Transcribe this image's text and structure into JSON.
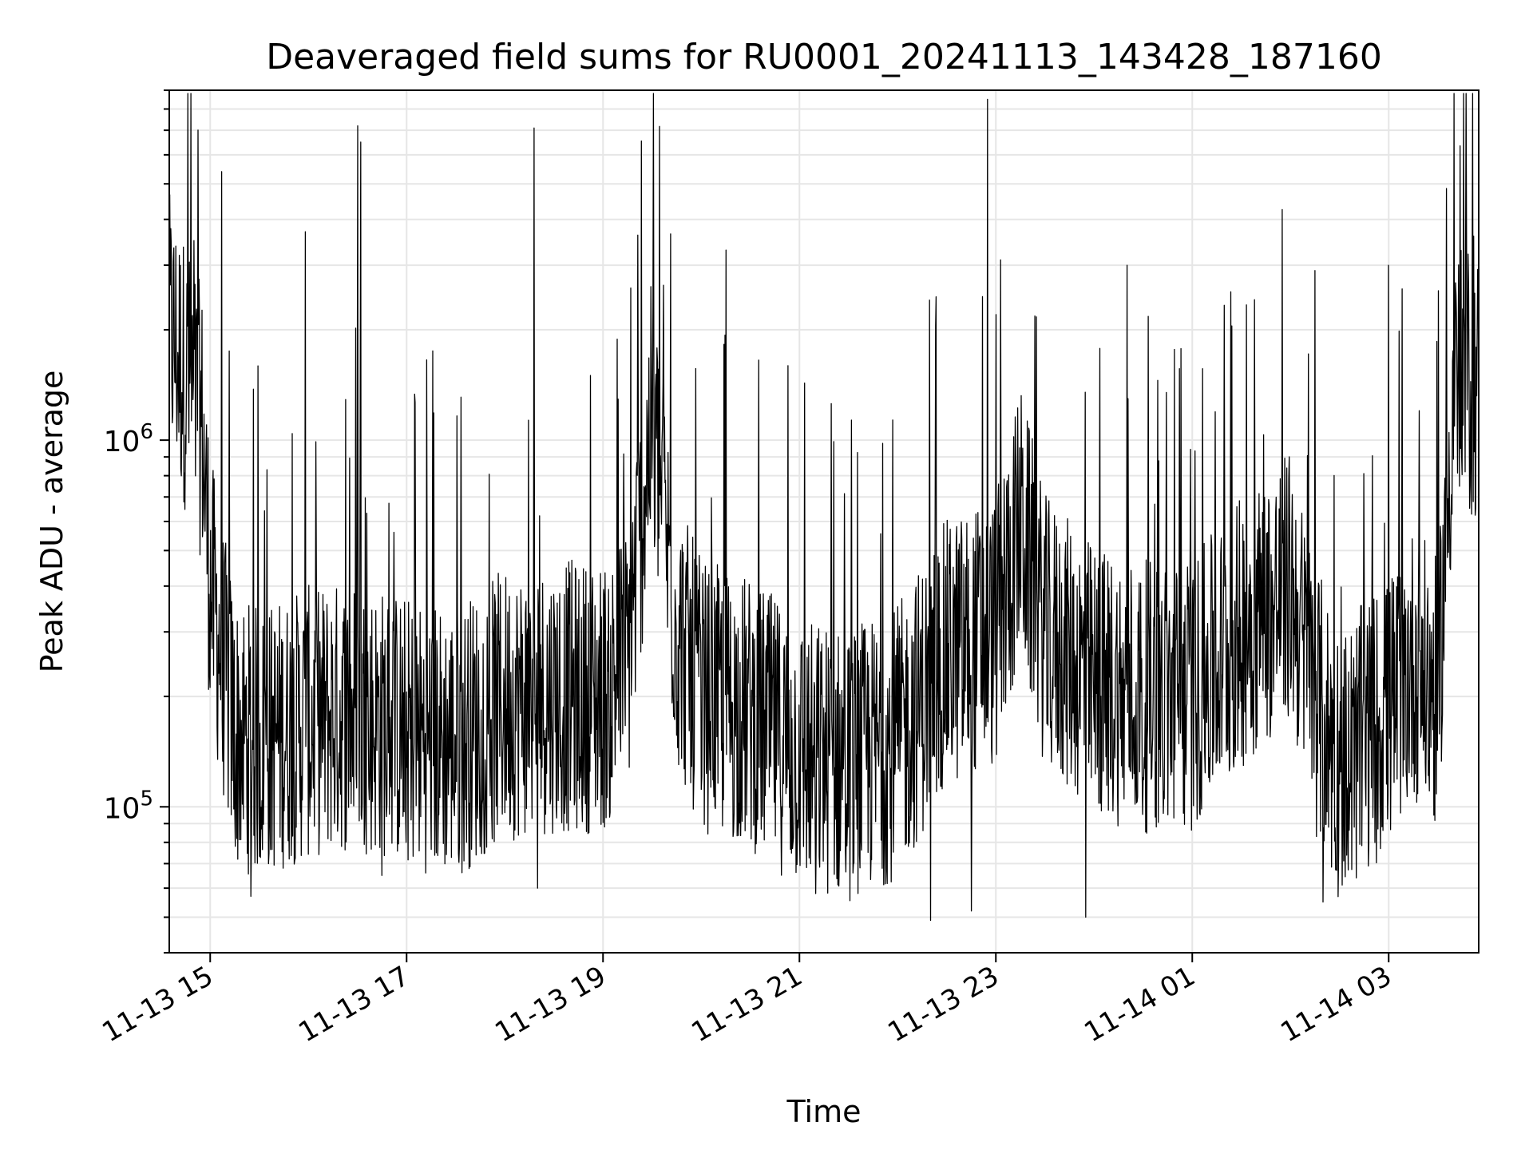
{
  "chart_data": {
    "type": "line",
    "title": "Deaveraged field sums for RU0001_20241113_143428_187160",
    "xlabel": "Time",
    "ylabel": "Peak ADU - average",
    "yscale": "log",
    "ylim": [
      40000,
      9000000
    ],
    "xlim": [
      "2024-11-13 14:35",
      "2024-11-14 03:55"
    ],
    "grid": true,
    "colors": {
      "line": "#000000",
      "grid": "#e6e6e6",
      "axes": "#000000"
    },
    "x_ticks": [
      {
        "label": "11-13 15",
        "t": "2024-11-13 15:00"
      },
      {
        "label": "11-13 17",
        "t": "2024-11-13 17:00"
      },
      {
        "label": "11-13 19",
        "t": "2024-11-13 19:00"
      },
      {
        "label": "11-13 21",
        "t": "2024-11-13 21:00"
      },
      {
        "label": "11-13 23",
        "t": "2024-11-13 23:00"
      },
      {
        "label": "11-14 01",
        "t": "2024-11-14 01:00"
      },
      {
        "label": "11-14 03",
        "t": "2024-11-14 03:00"
      }
    ],
    "y_ticks": [
      {
        "base": "10",
        "exp": "5",
        "value": 100000
      },
      {
        "base": "10",
        "exp": "6",
        "value": 1000000
      }
    ],
    "series": [
      {
        "x": [
          "2024-11-13 14:35",
          "2024-11-13 14:45",
          "2024-11-13 14:55",
          "2024-11-13 15:00",
          "2024-11-13 15:15",
          "2024-11-13 15:30",
          "2024-11-13 16:00",
          "2024-11-13 16:30",
          "2024-11-13 17:00",
          "2024-11-13 17:30",
          "2024-11-13 18:00",
          "2024-11-13 18:30",
          "2024-11-13 19:00",
          "2024-11-13 19:15",
          "2024-11-13 19:30",
          "2024-11-13 19:45",
          "2024-11-13 20:00",
          "2024-11-13 20:30",
          "2024-11-13 21:00",
          "2024-11-13 21:30",
          "2024-11-13 22:00",
          "2024-11-13 22:30",
          "2024-11-13 23:00",
          "2024-11-13 23:15",
          "2024-11-13 23:30",
          "2024-11-14 00:00",
          "2024-11-14 00:30",
          "2024-11-14 01:00",
          "2024-11-14 01:30",
          "2024-11-14 02:00",
          "2024-11-14 02:15",
          "2024-11-14 02:30",
          "2024-11-14 03:00",
          "2024-11-14 03:15",
          "2024-11-14 03:30",
          "2024-11-14 03:40",
          "2024-11-14 03:55"
        ],
        "y": [
          2000000,
          1500000,
          1100000,
          400000,
          160000,
          150000,
          170000,
          180000,
          160000,
          150000,
          190000,
          200000,
          200000,
          250000,
          1200000,
          300000,
          200000,
          180000,
          140000,
          130000,
          150000,
          260000,
          300000,
          600000,
          300000,
          220000,
          200000,
          200000,
          300000,
          400000,
          200000,
          130000,
          180000,
          250000,
          200000,
          1500000,
          1400000
        ]
      }
    ],
    "spikes": [
      {
        "t": "2024-11-13 14:50",
        "y": 3500000
      },
      {
        "t": "2024-11-13 15:07",
        "y": 5400000
      },
      {
        "t": "2024-11-13 15:58",
        "y": 3700000
      },
      {
        "t": "2024-11-13 16:30",
        "y": 7200000
      },
      {
        "t": "2024-11-13 16:32",
        "y": 6500000
      },
      {
        "t": "2024-11-13 18:18",
        "y": 7100000
      },
      {
        "t": "2024-11-13 19:17",
        "y": 2600000
      },
      {
        "t": "2024-11-13 20:15",
        "y": 3300000
      },
      {
        "t": "2024-11-13 22:55",
        "y": 8500000
      },
      {
        "t": "2024-11-13 23:00",
        "y": 2200000
      },
      {
        "t": "2024-11-14 00:20",
        "y": 3000000
      },
      {
        "t": "2024-11-14 02:15",
        "y": 2900000
      },
      {
        "t": "2024-11-14 03:00",
        "y": 3000000
      },
      {
        "t": "2024-11-14 03:52",
        "y": 3600000
      }
    ],
    "dips": [
      {
        "t": "2024-11-13 15:25",
        "y": 57000
      },
      {
        "t": "2024-11-13 16:45",
        "y": 65000
      },
      {
        "t": "2024-11-13 18:20",
        "y": 60000
      },
      {
        "t": "2024-11-13 21:10",
        "y": 58000
      },
      {
        "t": "2024-11-13 22:20",
        "y": 49000
      },
      {
        "t": "2024-11-13 22:45",
        "y": 52000
      },
      {
        "t": "2024-11-13 23:55",
        "y": 50000
      },
      {
        "t": "2024-11-14 02:20",
        "y": 55000
      }
    ]
  }
}
